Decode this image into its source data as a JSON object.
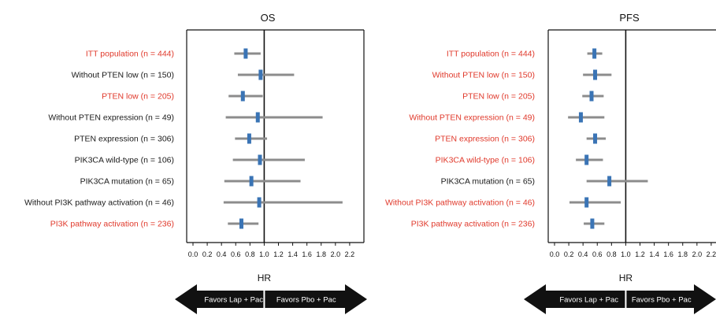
{
  "colors": {
    "significant_label": "#e0392b",
    "default_label": "#1a1a1a",
    "ci_line": "#8c8c8c",
    "point": "#3a74b5",
    "arrow": "#111111"
  },
  "chart_data": [
    {
      "type": "forest",
      "title": "OS",
      "xlabel": "HR",
      "xlim": [
        0,
        2.4
      ],
      "xticks": [
        "0.0",
        "0.2",
        "0.4",
        "0.6",
        "0.8",
        "1.0",
        "1.2",
        "1.4",
        "1.6",
        "1.8",
        "2.0",
        "2.2"
      ],
      "reference_line": 1.0,
      "arrow_left": "Favors Lap + Pac",
      "arrow_right": "Favors Pbo + Pac",
      "rows": [
        {
          "label": "ITT population (n = 444)",
          "hr": 0.74,
          "lo": 0.58,
          "hi": 0.95,
          "highlight": true
        },
        {
          "label": "Without PTEN low (n = 150)",
          "hr": 0.95,
          "lo": 0.63,
          "hi": 1.42,
          "highlight": false
        },
        {
          "label": "PTEN low (n = 205)",
          "hr": 0.7,
          "lo": 0.5,
          "hi": 0.98,
          "highlight": true
        },
        {
          "label": "Without PTEN expression (n = 49)",
          "hr": 0.91,
          "lo": 0.46,
          "hi": 1.82,
          "highlight": false
        },
        {
          "label": "PTEN expression (n = 306)",
          "hr": 0.79,
          "lo": 0.59,
          "hi": 1.04,
          "highlight": false
        },
        {
          "label": "PIK3CA wild-type (n = 106)",
          "hr": 0.94,
          "lo": 0.56,
          "hi": 1.57,
          "highlight": false
        },
        {
          "label": "PIK3CA mutation (n = 65)",
          "hr": 0.82,
          "lo": 0.44,
          "hi": 1.51,
          "highlight": false
        },
        {
          "label": "Without PI3K pathway activation (n = 46)",
          "hr": 0.93,
          "lo": 0.43,
          "hi": 2.1,
          "highlight": false
        },
        {
          "label": "PI3K pathway activation (n = 236)",
          "hr": 0.68,
          "lo": 0.49,
          "hi": 0.92,
          "highlight": true
        }
      ]
    },
    {
      "type": "forest",
      "title": "PFS",
      "xlabel": "HR",
      "xlim": [
        0,
        2.4
      ],
      "xticks": [
        "0.0",
        "0.2",
        "0.4",
        "0.6",
        "0.8",
        "1.0",
        "1.2",
        "1.4",
        "1.6",
        "1.8",
        "2.0",
        "2.2"
      ],
      "reference_line": 1.0,
      "arrow_left": "Favors Lap + Pac",
      "arrow_right": "Favors Pbo + Pac",
      "rows": [
        {
          "label": "ITT population (n = 444)",
          "hr": 0.56,
          "lo": 0.46,
          "hi": 0.67,
          "highlight": true
        },
        {
          "label": "Without PTEN low (n = 150)",
          "hr": 0.57,
          "lo": 0.4,
          "hi": 0.8,
          "highlight": true
        },
        {
          "label": "PTEN low (n = 205)",
          "hr": 0.52,
          "lo": 0.39,
          "hi": 0.69,
          "highlight": true
        },
        {
          "label": "Without PTEN expression (n = 49)",
          "hr": 0.37,
          "lo": 0.19,
          "hi": 0.7,
          "highlight": true
        },
        {
          "label": "PTEN expression (n = 306)",
          "hr": 0.57,
          "lo": 0.45,
          "hi": 0.72,
          "highlight": true
        },
        {
          "label": "PIK3CA wild-type (n = 106)",
          "hr": 0.45,
          "lo": 0.3,
          "hi": 0.68,
          "highlight": true
        },
        {
          "label": "PIK3CA mutation (n = 65)",
          "hr": 0.77,
          "lo": 0.45,
          "hi": 1.31,
          "highlight": false
        },
        {
          "label": "Without PI3K pathway activation (n = 46)",
          "hr": 0.45,
          "lo": 0.21,
          "hi": 0.93,
          "highlight": true
        },
        {
          "label": "PI3K pathway activation (n = 236)",
          "hr": 0.53,
          "lo": 0.41,
          "hi": 0.7,
          "highlight": true
        }
      ]
    }
  ]
}
